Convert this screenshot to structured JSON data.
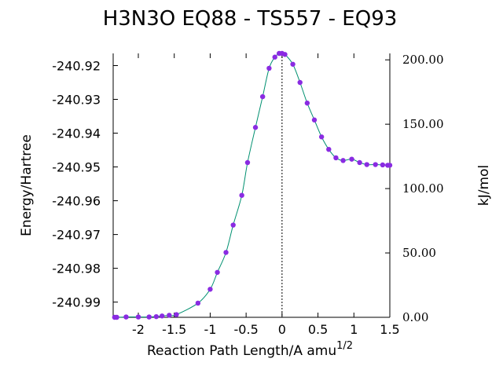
{
  "chart_data": {
    "type": "line",
    "title": "H3N3O   EQ88 - TS557 - EQ93",
    "xlabel": "Reaction Path Length/A amu",
    "xlabel_superscript": "1/2",
    "ylabel": "Energy/Hartree",
    "y2label": "kJ/mol",
    "xlim": [
      -2.35,
      1.5
    ],
    "ylim": [
      -240.9945,
      -240.9164
    ],
    "y2lim": [
      0,
      205
    ],
    "x_ticks": [
      -2,
      -1.5,
      -1,
      -0.5,
      0,
      0.5,
      1,
      1.5
    ],
    "x_tick_labels": [
      "-2",
      "-1.5",
      "-1",
      "-0.5",
      "0",
      "0.5",
      "1",
      "1.5"
    ],
    "y_ticks": [
      -240.92,
      -240.93,
      -240.94,
      -240.95,
      -240.96,
      -240.97,
      -240.98,
      -240.99
    ],
    "y_tick_labels": [
      "-240.92",
      "-240.93",
      "-240.94",
      "-240.95",
      "-240.96",
      "-240.97",
      "-240.98",
      "-240.99"
    ],
    "y2_ticks": [
      0,
      50,
      100,
      150,
      200
    ],
    "y2_tick_labels": [
      "0.00",
      "50.00",
      "100.00",
      "150.00",
      "200.00"
    ],
    "ts_marker_x": 0,
    "grid": false,
    "colors": {
      "curve": "#009070",
      "points": "#8a2be2",
      "axes": "#000000"
    },
    "series": [
      {
        "x": [
          -2.33,
          -2.3,
          -2.17,
          -2.0,
          -1.85,
          -1.75,
          -1.67,
          -1.57,
          -1.47,
          -1.17,
          -1.0,
          -0.9,
          -0.78,
          -0.68,
          -0.56,
          -0.48,
          -0.37,
          -0.27,
          -0.18,
          -0.1,
          -0.04,
          0.0,
          0.04,
          0.15,
          0.25,
          0.35,
          0.45,
          0.55,
          0.65,
          0.75,
          0.85,
          0.97,
          1.08,
          1.18,
          1.3,
          1.4,
          1.47,
          1.5
        ],
        "y": [
          -240.9945,
          -240.9945,
          -240.9944,
          -240.9944,
          -240.9944,
          -240.9943,
          -240.9941,
          -240.9939,
          -240.9937,
          -240.9903,
          -240.9862,
          -240.9812,
          -240.9753,
          -240.9672,
          -240.9584,
          -240.9487,
          -240.9383,
          -240.9292,
          -240.9208,
          -240.9175,
          -240.9164,
          -240.9164,
          -240.9167,
          -240.9196,
          -240.925,
          -240.9311,
          -240.9361,
          -240.9411,
          -240.9448,
          -240.9473,
          -240.9481,
          -240.9477,
          -240.9487,
          -240.9493,
          -240.9493,
          -240.9494,
          -240.9495,
          -240.9495
        ]
      }
    ]
  }
}
